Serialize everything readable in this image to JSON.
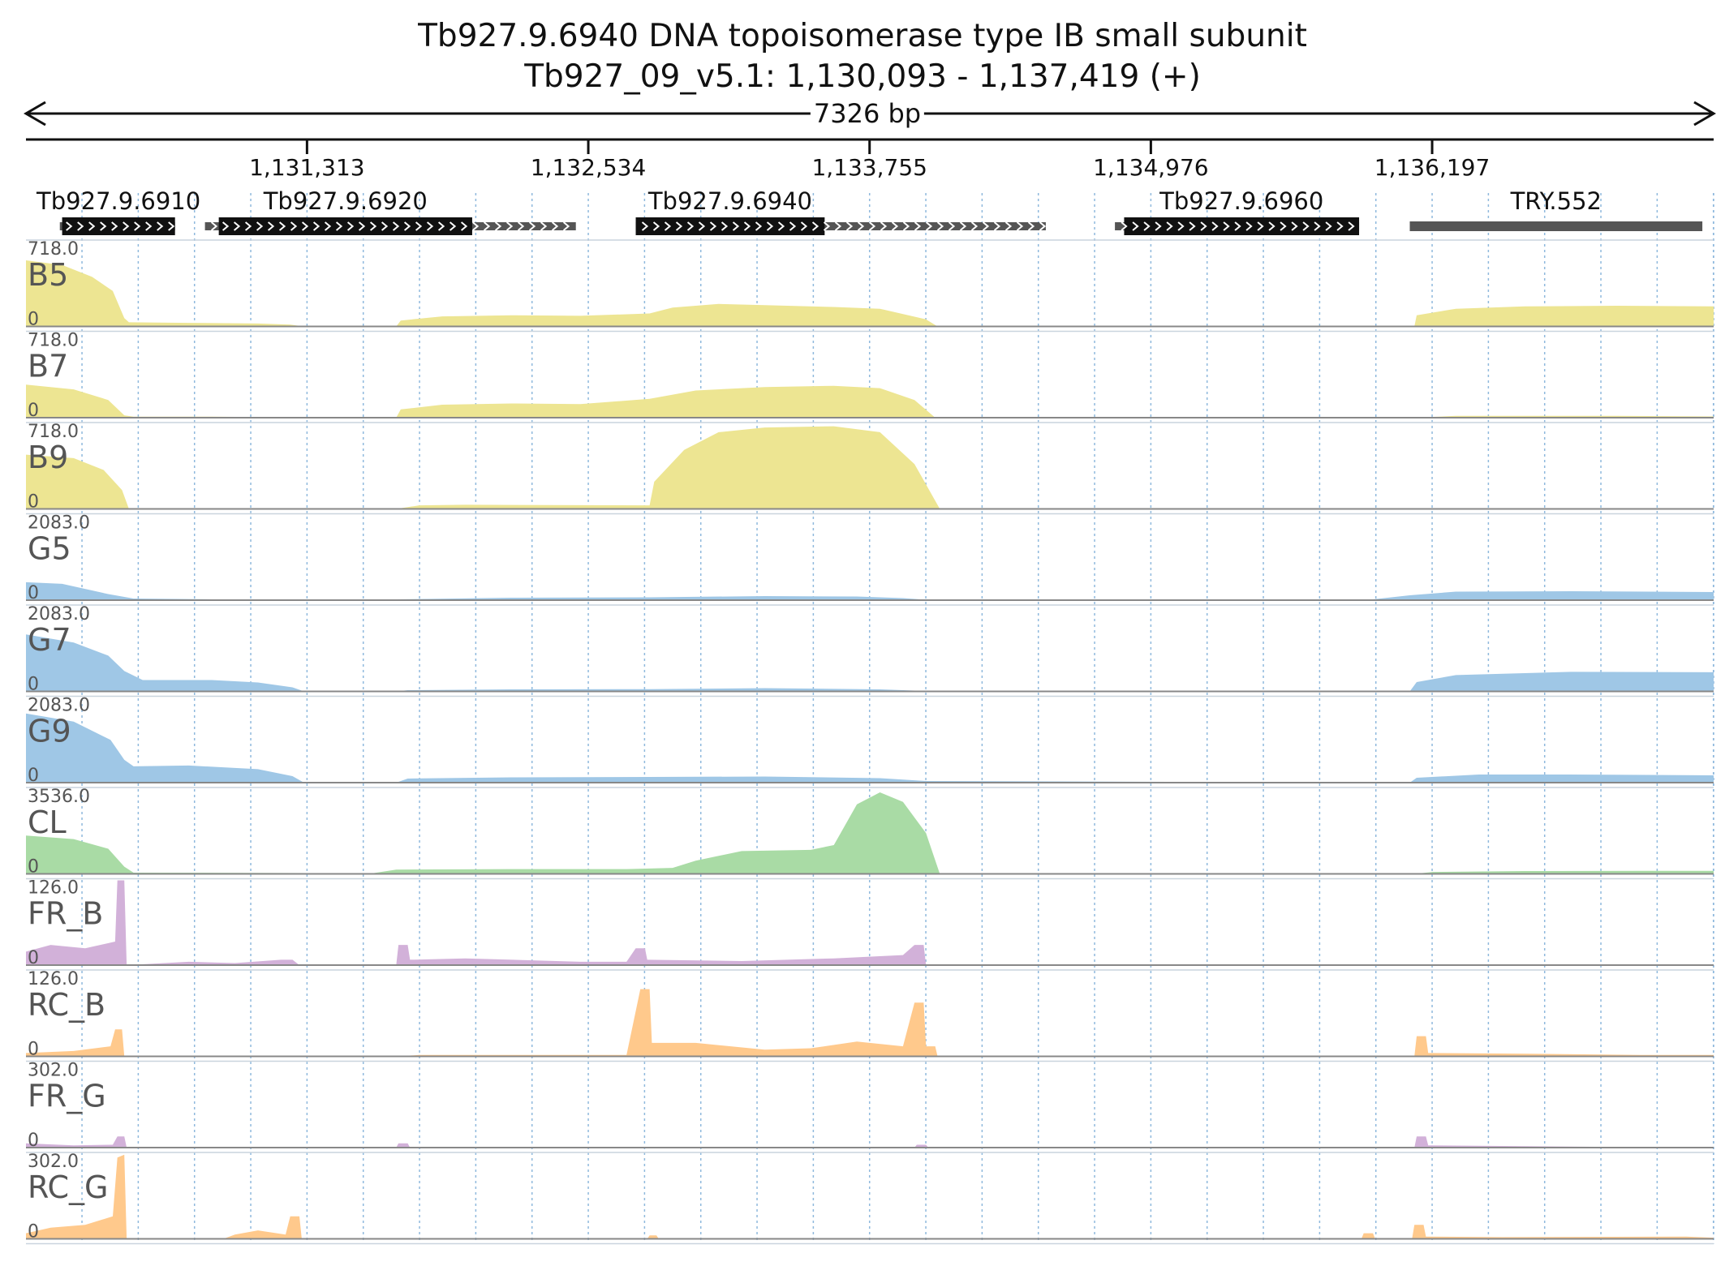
{
  "header": {
    "gene_title": "Tb927.9.6940  DNA topoisomerase type IB small subunit",
    "locus": "Tb927_09_v5.1: 1,130,093 - 1,137,419 (+)",
    "span_label": "7326 bp"
  },
  "chart_data": {
    "type": "area",
    "title": "Tb927.9.6940  DNA topoisomerase type IB small subunit",
    "chromosome": "Tb927_09_v5.1",
    "xlim": [
      1130093,
      1137419
    ],
    "ticks": [
      1131313,
      1132534,
      1133755,
      1134976,
      1136197
    ],
    "tick_labels": [
      "1,131,313",
      "1,132,534",
      "1,133,755",
      "1,134,976",
      "1,136,197"
    ],
    "genes": [
      {
        "name": "Tb927.9.6910",
        "utr_start": 1130240,
        "cds_start": 1130250,
        "cds_end": 1130740,
        "utr_end": 1130740,
        "arrows": true
      },
      {
        "name": "Tb927.9.6920",
        "utr_start": 1130870,
        "cds_start": 1130930,
        "cds_end": 1132030,
        "utr_end": 1132480,
        "arrows": true
      },
      {
        "name": "Tb927.9.6940",
        "utr_start": 1132740,
        "cds_start": 1132740,
        "cds_end": 1133560,
        "utr_end": 1134520,
        "arrows": true
      },
      {
        "name": "Tb927.9.6960",
        "utr_start": 1134820,
        "cds_start": 1134860,
        "cds_end": 1135880,
        "utr_end": 1135880,
        "arrows": true
      },
      {
        "name": "TRY.552",
        "utr_start": 1136100,
        "cds_start": 1136100,
        "cds_end": 1137370,
        "utr_end": 1137370,
        "arrows": false
      }
    ],
    "series": [
      {
        "name": "B5",
        "max": 718.0,
        "min": 0,
        "color": "#ede592",
        "points": [
          [
            1130093,
            560
          ],
          [
            1130250,
            520
          ],
          [
            1130380,
            420
          ],
          [
            1130470,
            300
          ],
          [
            1130520,
            70
          ],
          [
            1130540,
            35
          ],
          [
            1130800,
            30
          ],
          [
            1131100,
            25
          ],
          [
            1131240,
            15
          ],
          [
            1131300,
            0
          ],
          [
            1131700,
            0
          ],
          [
            1131720,
            50
          ],
          [
            1131900,
            85
          ],
          [
            1132200,
            95
          ],
          [
            1132500,
            90
          ],
          [
            1132800,
            110
          ],
          [
            1132900,
            160
          ],
          [
            1133100,
            190
          ],
          [
            1133300,
            180
          ],
          [
            1133600,
            165
          ],
          [
            1133800,
            150
          ],
          [
            1134000,
            60
          ],
          [
            1134050,
            0
          ],
          [
            1136120,
            0
          ],
          [
            1136130,
            95
          ],
          [
            1136300,
            150
          ],
          [
            1136600,
            170
          ],
          [
            1137000,
            175
          ],
          [
            1137419,
            170
          ]
        ]
      },
      {
        "name": "B7",
        "max": 718.0,
        "min": 0,
        "color": "#ede592",
        "points": [
          [
            1130093,
            280
          ],
          [
            1130300,
            240
          ],
          [
            1130450,
            150
          ],
          [
            1130520,
            20
          ],
          [
            1130560,
            8
          ],
          [
            1130900,
            8
          ],
          [
            1131100,
            5
          ],
          [
            1131300,
            0
          ],
          [
            1131700,
            0
          ],
          [
            1131720,
            70
          ],
          [
            1131900,
            110
          ],
          [
            1132200,
            120
          ],
          [
            1132500,
            115
          ],
          [
            1132800,
            160
          ],
          [
            1133000,
            230
          ],
          [
            1133300,
            260
          ],
          [
            1133600,
            270
          ],
          [
            1133800,
            250
          ],
          [
            1133950,
            150
          ],
          [
            1134040,
            0
          ],
          [
            1136120,
            0
          ],
          [
            1136300,
            15
          ],
          [
            1137000,
            15
          ],
          [
            1137419,
            10
          ]
        ]
      },
      {
        "name": "B9",
        "max": 718.0,
        "min": 0,
        "color": "#ede592",
        "points": [
          [
            1130093,
            460
          ],
          [
            1130300,
            430
          ],
          [
            1130430,
            330
          ],
          [
            1130510,
            160
          ],
          [
            1130540,
            0
          ],
          [
            1131700,
            0
          ],
          [
            1131800,
            30
          ],
          [
            1132000,
            35
          ],
          [
            1132800,
            30
          ],
          [
            1132820,
            230
          ],
          [
            1132950,
            500
          ],
          [
            1133100,
            650
          ],
          [
            1133300,
            690
          ],
          [
            1133600,
            700
          ],
          [
            1133800,
            650
          ],
          [
            1133950,
            380
          ],
          [
            1134060,
            0
          ],
          [
            1137419,
            0
          ]
        ]
      },
      {
        "name": "G5",
        "max": 2083.0,
        "min": 0,
        "color": "#9fc7e6",
        "points": [
          [
            1130093,
            440
          ],
          [
            1130250,
            400
          ],
          [
            1130450,
            150
          ],
          [
            1130560,
            40
          ],
          [
            1130900,
            20
          ],
          [
            1131300,
            10
          ],
          [
            1131600,
            5
          ],
          [
            1131700,
            20
          ],
          [
            1132200,
            60
          ],
          [
            1132800,
            70
          ],
          [
            1133300,
            100
          ],
          [
            1133700,
            90
          ],
          [
            1133900,
            50
          ],
          [
            1134000,
            10
          ],
          [
            1135900,
            0
          ],
          [
            1135940,
            20
          ],
          [
            1136100,
            120
          ],
          [
            1136300,
            210
          ],
          [
            1136800,
            220
          ],
          [
            1137419,
            200
          ]
        ]
      },
      {
        "name": "G7",
        "max": 2083.0,
        "min": 0,
        "color": "#9fc7e6",
        "points": [
          [
            1130093,
            1400
          ],
          [
            1130300,
            1200
          ],
          [
            1130450,
            880
          ],
          [
            1130520,
            500
          ],
          [
            1130600,
            280
          ],
          [
            1130900,
            280
          ],
          [
            1131100,
            220
          ],
          [
            1131250,
            100
          ],
          [
            1131300,
            0
          ],
          [
            1131700,
            0
          ],
          [
            1131750,
            30
          ],
          [
            1132200,
            50
          ],
          [
            1132800,
            55
          ],
          [
            1133300,
            80
          ],
          [
            1133800,
            50
          ],
          [
            1134000,
            10
          ],
          [
            1136100,
            0
          ],
          [
            1136130,
            230
          ],
          [
            1136300,
            400
          ],
          [
            1136800,
            480
          ],
          [
            1137419,
            470
          ]
        ]
      },
      {
        "name": "G9",
        "max": 2083.0,
        "min": 0,
        "color": "#9fc7e6",
        "points": [
          [
            1130093,
            1700
          ],
          [
            1130300,
            1500
          ],
          [
            1130460,
            1050
          ],
          [
            1130520,
            560
          ],
          [
            1130560,
            400
          ],
          [
            1130800,
            420
          ],
          [
            1131100,
            330
          ],
          [
            1131250,
            160
          ],
          [
            1131300,
            0
          ],
          [
            1131700,
            0
          ],
          [
            1131750,
            100
          ],
          [
            1132200,
            130
          ],
          [
            1132800,
            140
          ],
          [
            1133300,
            150
          ],
          [
            1133800,
            110
          ],
          [
            1134000,
            40
          ],
          [
            1136100,
            0
          ],
          [
            1136130,
            120
          ],
          [
            1136400,
            200
          ],
          [
            1136800,
            200
          ],
          [
            1137419,
            180
          ]
        ]
      },
      {
        "name": "CL",
        "max": 3536.0,
        "min": 0,
        "color": "#a9dba5",
        "points": [
          [
            1130093,
            1600
          ],
          [
            1130300,
            1450
          ],
          [
            1130450,
            1050
          ],
          [
            1130520,
            300
          ],
          [
            1130560,
            50
          ],
          [
            1131600,
            30
          ],
          [
            1131700,
            180
          ],
          [
            1132200,
            200
          ],
          [
            1132700,
            200
          ],
          [
            1132900,
            250
          ],
          [
            1133000,
            550
          ],
          [
            1133200,
            950
          ],
          [
            1133500,
            1000
          ],
          [
            1133600,
            1200
          ],
          [
            1133700,
            2900
          ],
          [
            1133800,
            3400
          ],
          [
            1133900,
            3000
          ],
          [
            1134000,
            1700
          ],
          [
            1134060,
            0
          ],
          [
            1136120,
            0
          ],
          [
            1136200,
            80
          ],
          [
            1136600,
            120
          ],
          [
            1137419,
            130
          ]
        ]
      },
      {
        "name": "FR_B",
        "max": 126.0,
        "min": 0,
        "color": "#d2b1d9",
        "points": [
          [
            1130093,
            20
          ],
          [
            1130200,
            30
          ],
          [
            1130350,
            25
          ],
          [
            1130480,
            35
          ],
          [
            1130490,
            126
          ],
          [
            1130520,
            126
          ],
          [
            1130530,
            0
          ],
          [
            1130800,
            5
          ],
          [
            1131000,
            3
          ],
          [
            1131200,
            8
          ],
          [
            1131250,
            8
          ],
          [
            1131280,
            0
          ],
          [
            1131700,
            0
          ],
          [
            1131710,
            30
          ],
          [
            1131750,
            30
          ],
          [
            1131760,
            8
          ],
          [
            1132000,
            10
          ],
          [
            1132500,
            5
          ],
          [
            1132700,
            5
          ],
          [
            1132740,
            25
          ],
          [
            1132780,
            25
          ],
          [
            1132790,
            8
          ],
          [
            1133200,
            6
          ],
          [
            1133600,
            10
          ],
          [
            1133900,
            15
          ],
          [
            1133950,
            30
          ],
          [
            1133990,
            30
          ],
          [
            1134000,
            0
          ],
          [
            1137419,
            0
          ]
        ]
      },
      {
        "name": "RC_B",
        "max": 126.0,
        "min": 0,
        "color": "#ffc98c",
        "points": [
          [
            1130093,
            5
          ],
          [
            1130300,
            8
          ],
          [
            1130460,
            15
          ],
          [
            1130480,
            40
          ],
          [
            1130510,
            40
          ],
          [
            1130520,
            0
          ],
          [
            1131700,
            0
          ],
          [
            1131800,
            2
          ],
          [
            1132700,
            2
          ],
          [
            1132760,
            100
          ],
          [
            1132800,
            100
          ],
          [
            1132810,
            20
          ],
          [
            1133000,
            20
          ],
          [
            1133300,
            10
          ],
          [
            1133500,
            12
          ],
          [
            1133700,
            22
          ],
          [
            1133900,
            15
          ],
          [
            1133950,
            80
          ],
          [
            1133990,
            80
          ],
          [
            1134000,
            15
          ],
          [
            1134040,
            15
          ],
          [
            1134050,
            0
          ],
          [
            1136120,
            0
          ],
          [
            1136130,
            30
          ],
          [
            1136170,
            30
          ],
          [
            1136180,
            5
          ],
          [
            1136600,
            4
          ],
          [
            1137100,
            2
          ],
          [
            1137419,
            2
          ]
        ]
      },
      {
        "name": "FR_G",
        "max": 302.0,
        "min": 0,
        "color": "#d2b1d9",
        "points": [
          [
            1130093,
            15
          ],
          [
            1130300,
            8
          ],
          [
            1130470,
            10
          ],
          [
            1130490,
            40
          ],
          [
            1130520,
            40
          ],
          [
            1130530,
            0
          ],
          [
            1131700,
            0
          ],
          [
            1131710,
            15
          ],
          [
            1131750,
            15
          ],
          [
            1131760,
            0
          ],
          [
            1133950,
            0
          ],
          [
            1133960,
            10
          ],
          [
            1134000,
            10
          ],
          [
            1134010,
            0
          ],
          [
            1136120,
            0
          ],
          [
            1136130,
            40
          ],
          [
            1136170,
            40
          ],
          [
            1136180,
            8
          ],
          [
            1136600,
            5
          ],
          [
            1136900,
            3
          ],
          [
            1137419,
            0
          ]
        ]
      },
      {
        "name": "RC_G",
        "max": 302.0,
        "min": 0,
        "color": "#ffc98c",
        "points": [
          [
            1130093,
            20
          ],
          [
            1130200,
            40
          ],
          [
            1130350,
            50
          ],
          [
            1130470,
            80
          ],
          [
            1130490,
            290
          ],
          [
            1130520,
            300
          ],
          [
            1130530,
            0
          ],
          [
            1130950,
            0
          ],
          [
            1131000,
            15
          ],
          [
            1131100,
            30
          ],
          [
            1131220,
            15
          ],
          [
            1131240,
            80
          ],
          [
            1131280,
            80
          ],
          [
            1131290,
            0
          ],
          [
            1132790,
            0
          ],
          [
            1132800,
            12
          ],
          [
            1132830,
            12
          ],
          [
            1132840,
            0
          ],
          [
            1135890,
            0
          ],
          [
            1135900,
            20
          ],
          [
            1135940,
            20
          ],
          [
            1135950,
            0
          ],
          [
            1136110,
            0
          ],
          [
            1136120,
            50
          ],
          [
            1136160,
            50
          ],
          [
            1136170,
            8
          ],
          [
            1136500,
            6
          ],
          [
            1137300,
            8
          ],
          [
            1137419,
            4
          ]
        ]
      }
    ]
  }
}
